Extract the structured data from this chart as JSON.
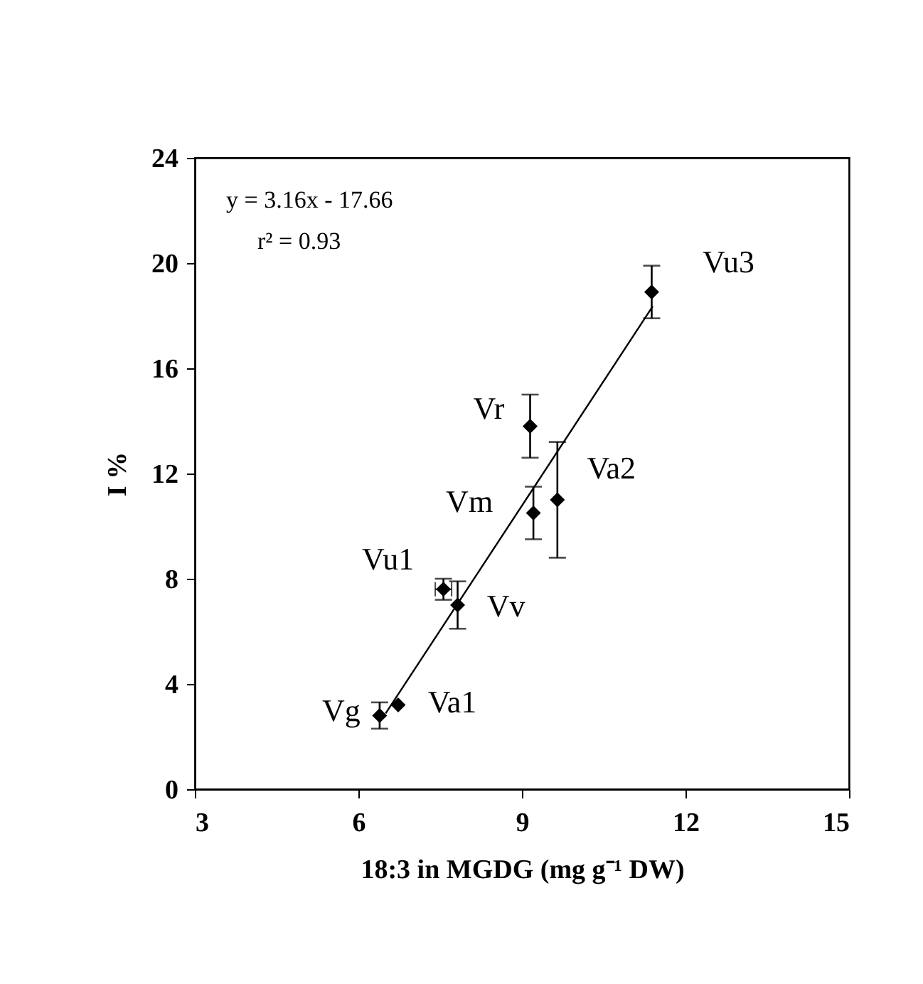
{
  "chart_data": {
    "type": "scatter",
    "xlabel": "18:3 in MGDG (mg g⁻¹ DW)",
    "ylabel": "I %",
    "xlim": [
      3,
      15
    ],
    "xticks": [
      3,
      6,
      9,
      12,
      15
    ],
    "ylim": [
      0,
      24
    ],
    "yticks": [
      0,
      4,
      8,
      12,
      16,
      20,
      24
    ],
    "series": [
      {
        "marker": "diamond",
        "color": "#000000",
        "x": [
          11.38,
          9.15,
          9.65,
          9.21,
          7.56,
          7.82,
          6.73,
          6.39
        ],
        "values": [
          18.9,
          13.8,
          11.0,
          10.5,
          7.6,
          7.0,
          3.2,
          2.8
        ],
        "errors": [
          1.0,
          1.2,
          2.2,
          1.0,
          0.4,
          0.9,
          null,
          0.5
        ],
        "xerrors": [
          null,
          null,
          null,
          null,
          0.15,
          null,
          null,
          null
        ]
      },
      {
        "type": "line",
        "color": "#000000",
        "x": [
          6.5,
          11.4
        ],
        "values": [
          2.88,
          18.36
        ]
      }
    ],
    "annotations": [
      "y = 3.16x - 17.66",
      "r² = 0.93",
      {
        "text": "Vu3",
        "x": 11.38,
        "y": 18.9
      },
      {
        "text": "Vr",
        "x": 9.15,
        "y": 13.8
      },
      {
        "text": "Va2",
        "x": 9.65,
        "y": 11.0
      },
      {
        "text": "Vm",
        "x": 9.21,
        "y": 10.5
      },
      {
        "text": "Vu1",
        "x": 7.56,
        "y": 7.6
      },
      {
        "text": "Vv",
        "x": 7.82,
        "y": 7.0
      },
      {
        "text": "Va1",
        "x": 6.73,
        "y": 3.2
      },
      {
        "text": "Vg",
        "x": 6.39,
        "y": 2.8
      }
    ]
  }
}
